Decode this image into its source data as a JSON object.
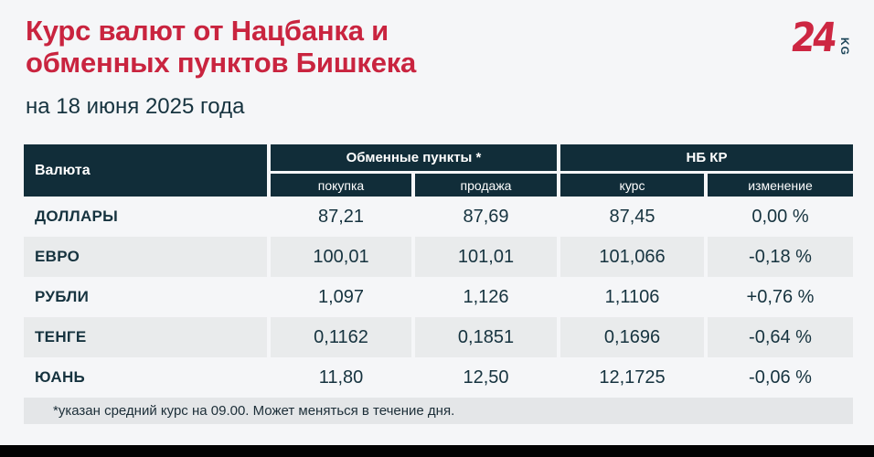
{
  "header": {
    "title_line1": "Курс валют от Нацбанка и",
    "title_line2": "обменных пунктов Бишкека",
    "subtitle": "на 18 июня 2025 года",
    "logo_text": "24",
    "logo_suffix": "KG"
  },
  "table": {
    "currency_header": "Валюта",
    "group_exchange": "Обменные пункты *",
    "group_nbkr": "НБ КР",
    "subheaders": [
      "покупка",
      "продажа",
      "курс",
      "изменение"
    ],
    "rows": [
      {
        "currency": "ДОЛЛАРЫ",
        "buy": "87,21",
        "sell": "87,69",
        "rate": "87,45",
        "change": "0,00 %"
      },
      {
        "currency": "ЕВРО",
        "buy": "100,01",
        "sell": "101,01",
        "rate": "101,066",
        "change": "-0,18 %"
      },
      {
        "currency": "РУБЛИ",
        "buy": "1,097",
        "sell": "1,126",
        "rate": "1,1106",
        "change": "+0,76 %"
      },
      {
        "currency": "ТЕНГЕ",
        "buy": "0,1162",
        "sell": "0,1851",
        "rate": "0,1696",
        "change": "-0,64 %"
      },
      {
        "currency": "ЮАНЬ",
        "buy": "11,80",
        "sell": "12,50",
        "rate": "12,1725",
        "change": "-0,06 %"
      }
    ],
    "footnote": "*указан средний курс на 09.00. Может меняться в течение дня."
  },
  "colors": {
    "accent_red": "#c9243f",
    "header_dark": "#112d39",
    "row_stripe": "#e9ebec",
    "footnote_bg": "#e4e6e8",
    "page_bg": "#f5f6f8",
    "text_dark": "#16333f",
    "bottom_bar": "#030303"
  },
  "chart_data": {
    "type": "table",
    "title": "Курс валют от Нацбанка и обменных пунктов Бишкека",
    "subtitle": "на 18 июня 2025 года",
    "columns": [
      "Валюта",
      "Обменные пункты * — покупка",
      "Обменные пункты * — продажа",
      "НБ КР — курс",
      "НБ КР — изменение (%)"
    ],
    "rows": [
      [
        "ДОЛЛАРЫ",
        87.21,
        87.69,
        87.45,
        0.0
      ],
      [
        "ЕВРО",
        100.01,
        101.01,
        101.066,
        -0.18
      ],
      [
        "РУБЛИ",
        1.097,
        1.126,
        1.1106,
        0.76
      ],
      [
        "ТЕНГЕ",
        0.1162,
        0.1851,
        0.1696,
        -0.64
      ],
      [
        "ЮАНЬ",
        11.8,
        12.5,
        12.1725,
        -0.06
      ]
    ],
    "footnote": "*указан средний курс на 09.00. Может меняться в течение дня.",
    "source_logo": "24.KG"
  }
}
